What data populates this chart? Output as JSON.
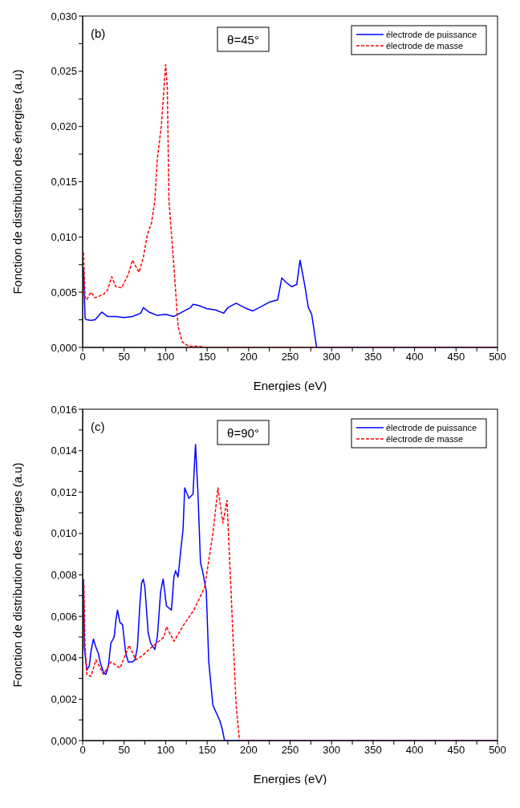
{
  "chart_data": [
    {
      "type": "line",
      "xlabel": "Energies (eV)",
      "ylabel": "Fonction de distribution des énergies (a.u)",
      "annotations": [
        "(b)",
        "θ=45°"
      ],
      "legend": "top right",
      "marker": "none",
      "grid": false,
      "xlim": [
        0,
        500
      ],
      "xticks": [
        0,
        {
          "value": 25,
          "label": null
        },
        50,
        {
          "value": 75,
          "label": null
        },
        100,
        {
          "value": 125,
          "label": null
        },
        150,
        {
          "value": 175,
          "label": null
        },
        200,
        {
          "value": 225,
          "label": null
        },
        250,
        {
          "value": 275,
          "label": null
        },
        300,
        {
          "value": 325,
          "label": null
        },
        350,
        {
          "value": 375,
          "label": null
        },
        400,
        {
          "value": 425,
          "label": null
        },
        450,
        {
          "value": 475,
          "label": null
        },
        500
      ],
      "ylim": [
        0,
        0.03
      ],
      "yticks": [
        {
          "value": 0,
          "label": "0,000"
        },
        {
          "value": 0.0025,
          "label": null
        },
        {
          "value": 0.005,
          "label": "0,005"
        },
        {
          "value": 0.0075,
          "label": null
        },
        {
          "value": 0.01,
          "label": "0,010"
        },
        {
          "value": 0.0125,
          "label": null
        },
        {
          "value": 0.015,
          "label": "0,015"
        },
        {
          "value": 0.0175,
          "label": null
        },
        {
          "value": 0.02,
          "label": "0,020"
        },
        {
          "value": 0.0225,
          "label": null
        },
        {
          "value": 0.025,
          "label": "0,025"
        },
        {
          "value": 0.0275,
          "label": null
        },
        {
          "value": 0.03,
          "label": "0,030"
        }
      ],
      "series": [
        {
          "name": "électrode de puissance",
          "color": "#0000ff",
          "line_style": "solid",
          "x": [
            1,
            3,
            5,
            10,
            15,
            23,
            30,
            40,
            50,
            60,
            70,
            73,
            80,
            90,
            100,
            110,
            120,
            130,
            133,
            140,
            150,
            160,
            170,
            175,
            185,
            195,
            205,
            215,
            225,
            235,
            240,
            245,
            252,
            258,
            262,
            268,
            272,
            276,
            282,
            500
          ],
          "values": [
            0.0071,
            0.0026,
            0.0025,
            0.00245,
            0.0025,
            0.0032,
            0.0028,
            0.0028,
            0.0027,
            0.0028,
            0.0031,
            0.0036,
            0.0032,
            0.0029,
            0.003,
            0.0028,
            0.0032,
            0.0036,
            0.0039,
            0.0038,
            0.0035,
            0.0034,
            0.0031,
            0.0036,
            0.004,
            0.0036,
            0.0033,
            0.0037,
            0.0041,
            0.0043,
            0.0063,
            0.0059,
            0.0055,
            0.0057,
            0.0079,
            0.0055,
            0.0036,
            0.003,
            0,
            0
          ]
        },
        {
          "name": "électrode de masse",
          "color": "#ff0000",
          "line_style": "dashed",
          "x": [
            1,
            3,
            5,
            10,
            15,
            25,
            30,
            35,
            40,
            47,
            55,
            60,
            65,
            68,
            73,
            78,
            83,
            87,
            90,
            95,
            100,
            102,
            104,
            110,
            115,
            120,
            128,
            140,
            150,
            500
          ],
          "values": [
            0.0086,
            0.0045,
            0.0043,
            0.005,
            0.0045,
            0.0048,
            0.0052,
            0.0064,
            0.0055,
            0.0054,
            0.0066,
            0.0079,
            0.0072,
            0.0068,
            0.0081,
            0.0102,
            0.0113,
            0.0133,
            0.0171,
            0.0202,
            0.0256,
            0.0236,
            0.0133,
            0.0073,
            0.0019,
            0.0005,
            0.0001,
            0.0001,
            0,
            0
          ]
        }
      ]
    },
    {
      "type": "line",
      "xlabel": "Energies (eV)",
      "ylabel": "Fonction de distribution des énergies (a.u)",
      "annotations": [
        "(c)",
        "θ=90°"
      ],
      "legend": "top right",
      "marker": "none",
      "grid": false,
      "xlim": [
        0,
        500
      ],
      "xticks": [
        0,
        {
          "value": 25,
          "label": null
        },
        50,
        {
          "value": 75,
          "label": null
        },
        100,
        {
          "value": 125,
          "label": null
        },
        150,
        {
          "value": 175,
          "label": null
        },
        200,
        {
          "value": 225,
          "label": null
        },
        250,
        {
          "value": 275,
          "label": null
        },
        300,
        {
          "value": 325,
          "label": null
        },
        350,
        {
          "value": 375,
          "label": null
        },
        400,
        {
          "value": 425,
          "label": null
        },
        450,
        {
          "value": 475,
          "label": null
        },
        500
      ],
      "ylim": [
        0,
        0.016
      ],
      "yticks": [
        {
          "value": 0,
          "label": "0,000"
        },
        {
          "value": 0.001,
          "label": null
        },
        {
          "value": 0.002,
          "label": "0,002"
        },
        {
          "value": 0.003,
          "label": null
        },
        {
          "value": 0.004,
          "label": "0,004"
        },
        {
          "value": 0.005,
          "label": null
        },
        {
          "value": 0.006,
          "label": "0,006"
        },
        {
          "value": 0.007,
          "label": null
        },
        {
          "value": 0.008,
          "label": "0,008"
        },
        {
          "value": 0.009,
          "label": null
        },
        {
          "value": 0.01,
          "label": "0,010"
        },
        {
          "value": 0.011,
          "label": null
        },
        {
          "value": 0.012,
          "label": "0,012"
        },
        {
          "value": 0.013,
          "label": null
        },
        {
          "value": 0.014,
          "label": "0,014"
        },
        {
          "value": 0.015,
          "label": null
        },
        {
          "value": 0.016,
          "label": "0,016"
        }
      ],
      "series": [
        {
          "name": "électrode de puissance",
          "color": "#0000ff",
          "line_style": "solid",
          "x": [
            1,
            2,
            5,
            8,
            10,
            13,
            16,
            19,
            21,
            25,
            28,
            31,
            34,
            38,
            40,
            42,
            45,
            48,
            52,
            55,
            60,
            63,
            66,
            69,
            71,
            73,
            75,
            79,
            82,
            87,
            90,
            94,
            97,
            101,
            107,
            110,
            112,
            115,
            118,
            121,
            123,
            128,
            133,
            136,
            139,
            142,
            145,
            149,
            152,
            157,
            165,
            168,
            171,
            500
          ],
          "values": [
            0.0078,
            0.0045,
            0.0034,
            0.0036,
            0.0043,
            0.0049,
            0.0045,
            0.0042,
            0.0038,
            0.0033,
            0.0032,
            0.0036,
            0.0047,
            0.005,
            0.0058,
            0.0063,
            0.0057,
            0.0056,
            0.0042,
            0.0038,
            0.0038,
            0.0039,
            0.0045,
            0.0066,
            0.0076,
            0.0078,
            0.0074,
            0.0052,
            0.0047,
            0.0044,
            0.005,
            0.0072,
            0.0078,
            0.0065,
            0.0063,
            0.0079,
            0.0082,
            0.0079,
            0.0091,
            0.0102,
            0.0122,
            0.0117,
            0.0119,
            0.0143,
            0.0119,
            0.0086,
            0.0081,
            0.0072,
            0.0038,
            0.0017,
            0.001,
            0.0006,
            0,
            0
          ]
        },
        {
          "name": "électrode de masse",
          "color": "#ff0000",
          "line_style": "dashed",
          "x": [
            1.5,
            3,
            5,
            10,
            16,
            20,
            25,
            34,
            45,
            56,
            64,
            72,
            83,
            98,
            101,
            110,
            122,
            134,
            147,
            157,
            163,
            169,
            174,
            181,
            185,
            189,
            500
          ],
          "values": [
            0.0075,
            0.0045,
            0.0032,
            0.0031,
            0.0039,
            0.0036,
            0.0032,
            0.0038,
            0.0035,
            0.0046,
            0.0039,
            0.0041,
            0.0045,
            0.005,
            0.0055,
            0.0048,
            0.0056,
            0.0063,
            0.0074,
            0.01,
            0.0122,
            0.0105,
            0.0116,
            0.0052,
            0.0017,
            0,
            0
          ]
        }
      ]
    }
  ]
}
